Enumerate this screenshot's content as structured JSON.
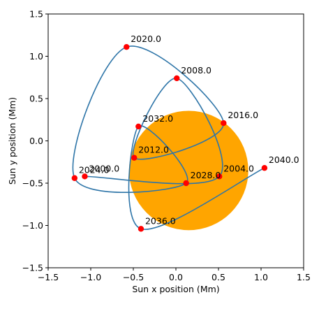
{
  "chart_data": {
    "type": "scatter",
    "xlabel": "Sun x position (Mm)",
    "ylabel": "Sun y position (Mm)",
    "xlim": [
      -1.5,
      1.5
    ],
    "ylim": [
      -1.5,
      1.5
    ],
    "xticks": [
      -1.5,
      -1.0,
      -0.5,
      0.0,
      0.5,
      1.0,
      1.5
    ],
    "yticks": [
      -1.5,
      -1.0,
      -0.5,
      0.0,
      0.5,
      1.0,
      1.5
    ],
    "xtick_labels": [
      "−1.5",
      "−1.0",
      "−0.5",
      "0.0",
      "0.5",
      "1.0",
      "1.5"
    ],
    "ytick_labels": [
      "−1.5",
      "−1.0",
      "−0.5",
      "0.0",
      "0.5",
      "1.0",
      "1.5"
    ],
    "grid": false,
    "sun": {
      "center": [
        0.15,
        -0.35
      ],
      "radius": 0.7,
      "color": "#FFA500"
    },
    "trajectory_color": "#2E75A8",
    "point_color": "#FF0000",
    "points": [
      {
        "label": "2000.0",
        "x": -1.07,
        "y": -0.42
      },
      {
        "label": "2004.0",
        "x": 0.51,
        "y": -0.42
      },
      {
        "label": "2008.0",
        "x": 0.01,
        "y": 0.74
      },
      {
        "label": "2012.0",
        "x": -0.49,
        "y": -0.2
      },
      {
        "label": "2016.0",
        "x": 0.56,
        "y": 0.21
      },
      {
        "label": "2020.0",
        "x": -0.58,
        "y": 1.11
      },
      {
        "label": "2024.0",
        "x": -1.19,
        "y": -0.44
      },
      {
        "label": "2028.0",
        "x": 0.12,
        "y": -0.5
      },
      {
        "label": "2032.0",
        "x": -0.44,
        "y": 0.17
      },
      {
        "label": "2036.0",
        "x": -0.41,
        "y": -1.04
      },
      {
        "label": "2040.0",
        "x": 1.04,
        "y": -0.32
      }
    ]
  }
}
